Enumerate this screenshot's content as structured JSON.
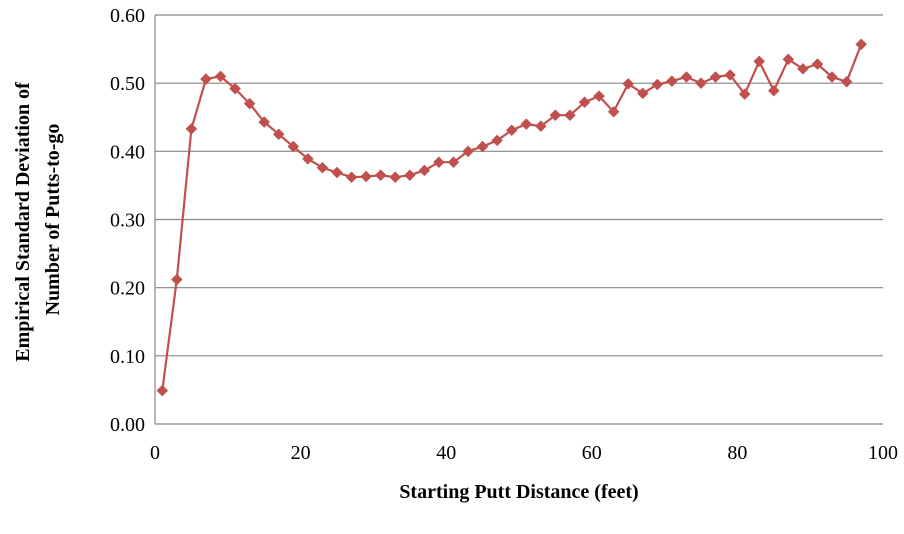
{
  "chart_data": {
    "type": "line",
    "title": "",
    "xlabel": "Starting Putt Distance (feet)",
    "ylabel_lines": [
      "Empirical Standard Deviation of",
      "Number of Putts-to-go"
    ],
    "xlim": [
      0,
      100
    ],
    "ylim": [
      0,
      0.6
    ],
    "x_ticks": [
      0,
      20,
      40,
      60,
      80,
      100
    ],
    "x_tick_labels": [
      "0",
      "20",
      "40",
      "60",
      "80",
      "100"
    ],
    "y_ticks": [
      0,
      0.1,
      0.2,
      0.3,
      0.4,
      0.5,
      0.6
    ],
    "y_tick_labels": [
      "0.00",
      "0.10",
      "0.20",
      "0.30",
      "0.40",
      "0.50",
      "0.60"
    ],
    "grid": "horizontal",
    "legend": "none",
    "series": [
      {
        "color": "#c0504d",
        "marker": "diamond",
        "points": [
          [
            1,
            0.049
          ],
          [
            3,
            0.212
          ],
          [
            5,
            0.433
          ],
          [
            7,
            0.506
          ],
          [
            9,
            0.51
          ],
          [
            11,
            0.492
          ],
          [
            13,
            0.47
          ],
          [
            15,
            0.443
          ],
          [
            17,
            0.425
          ],
          [
            19,
            0.407
          ],
          [
            21,
            0.389
          ],
          [
            23,
            0.376
          ],
          [
            25,
            0.369
          ],
          [
            27,
            0.362
          ],
          [
            29,
            0.363
          ],
          [
            31,
            0.365
          ],
          [
            33,
            0.362
          ],
          [
            35,
            0.365
          ],
          [
            37,
            0.372
          ],
          [
            39,
            0.384
          ],
          [
            41,
            0.384
          ],
          [
            43,
            0.4
          ],
          [
            45,
            0.407
          ],
          [
            47,
            0.416
          ],
          [
            49,
            0.431
          ],
          [
            51,
            0.44
          ],
          [
            53,
            0.437
          ],
          [
            55,
            0.453
          ],
          [
            57,
            0.453
          ],
          [
            59,
            0.472
          ],
          [
            61,
            0.481
          ],
          [
            63,
            0.458
          ],
          [
            65,
            0.499
          ],
          [
            67,
            0.485
          ],
          [
            69,
            0.498
          ],
          [
            71,
            0.503
          ],
          [
            73,
            0.509
          ],
          [
            75,
            0.5
          ],
          [
            77,
            0.509
          ],
          [
            79,
            0.512
          ],
          [
            81,
            0.484
          ],
          [
            83,
            0.532
          ],
          [
            85,
            0.489
          ],
          [
            87,
            0.535
          ],
          [
            89,
            0.521
          ],
          [
            91,
            0.528
          ],
          [
            93,
            0.509
          ],
          [
            95,
            0.502
          ],
          [
            97,
            0.557
          ]
        ]
      }
    ]
  }
}
